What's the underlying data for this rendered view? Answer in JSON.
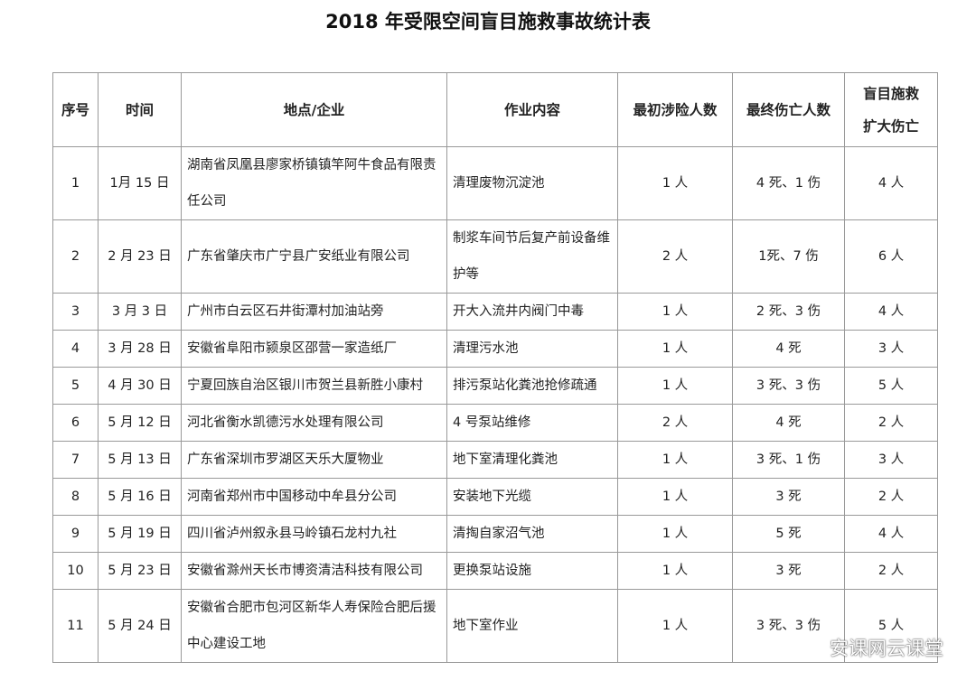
{
  "title": "2018 年受限空间盲目施救事故统计表",
  "headers": [
    "序号",
    "时间",
    "地点/企业",
    "作业内容",
    "最初涉险人数",
    "最终伤亡人数",
    "盲目施救扩大伤亡"
  ],
  "header_last_lines": [
    "盲目施救",
    "扩大伤亡"
  ],
  "rows": [
    {
      "no": "1",
      "date": "1月 15 日",
      "place": "湖南省凤凰县廖家桥镇镇竿阿牛食品有限责任公司",
      "work": "清理废物沉淀池",
      "initial": "1 人",
      "final": "4 死、1 伤",
      "expanded": "4 人"
    },
    {
      "no": "2",
      "date": "2 月 23 日",
      "place": "广东省肇庆市广宁县广安纸业有限公司",
      "work": "制浆车间节后复产前设备维护等",
      "initial": "2 人",
      "final": "1死、7 伤",
      "expanded": "6 人"
    },
    {
      "no": "3",
      "date": "3 月 3 日",
      "place": "广州市白云区石井街潭村加油站旁",
      "work": "开大入流井内阀门中毒",
      "initial": "1 人",
      "final": "2 死、3 伤",
      "expanded": "4 人"
    },
    {
      "no": "4",
      "date": "3 月 28 日",
      "place": "安徽省阜阳市颍泉区邵营一家造纸厂",
      "work": "清理污水池",
      "initial": "1 人",
      "final": "4 死",
      "expanded": "3 人"
    },
    {
      "no": "5",
      "date": "4 月 30 日",
      "place": "宁夏回族自治区银川市贺兰县新胜小康村",
      "work": "排污泵站化粪池抢修疏通",
      "initial": "1 人",
      "final": "3 死、3 伤",
      "expanded": "5 人"
    },
    {
      "no": "6",
      "date": "5 月 12 日",
      "place": "河北省衡水凯德污水处理有限公司",
      "work": "4 号泵站维修",
      "initial": "2 人",
      "final": "4 死",
      "expanded": "2 人"
    },
    {
      "no": "7",
      "date": "5 月 13 日",
      "place": "广东省深圳市罗湖区天乐大厦物业",
      "work": "地下室清理化粪池",
      "initial": "1 人",
      "final": "3 死、1 伤",
      "expanded": "3 人"
    },
    {
      "no": "8",
      "date": "5 月 16 日",
      "place": "河南省郑州市中国移动中牟县分公司",
      "work": "安装地下光缆",
      "initial": "1 人",
      "final": "3 死",
      "expanded": "2 人"
    },
    {
      "no": "9",
      "date": "5 月 19 日",
      "place": "四川省泸州叙永县马岭镇石龙村九社",
      "work": "清掏自家沼气池",
      "initial": "1 人",
      "final": "5 死",
      "expanded": "4 人"
    },
    {
      "no": "10",
      "date": "5 月 23 日",
      "place": "安徽省滁州天长市博资清洁科技有限公司",
      "work": "更换泵站设施",
      "initial": "1 人",
      "final": "3 死",
      "expanded": "2 人"
    },
    {
      "no": "11",
      "date": "5 月 24 日",
      "place": "安徽省合肥市包河区新华人寿保险合肥后援中心建设工地",
      "work": "地下室作业",
      "initial": "1 人",
      "final": "3 死、3 伤",
      "expanded": "5 人"
    }
  ],
  "watermark": "安课网云课堂",
  "watermark_icon": "wechat-icon"
}
